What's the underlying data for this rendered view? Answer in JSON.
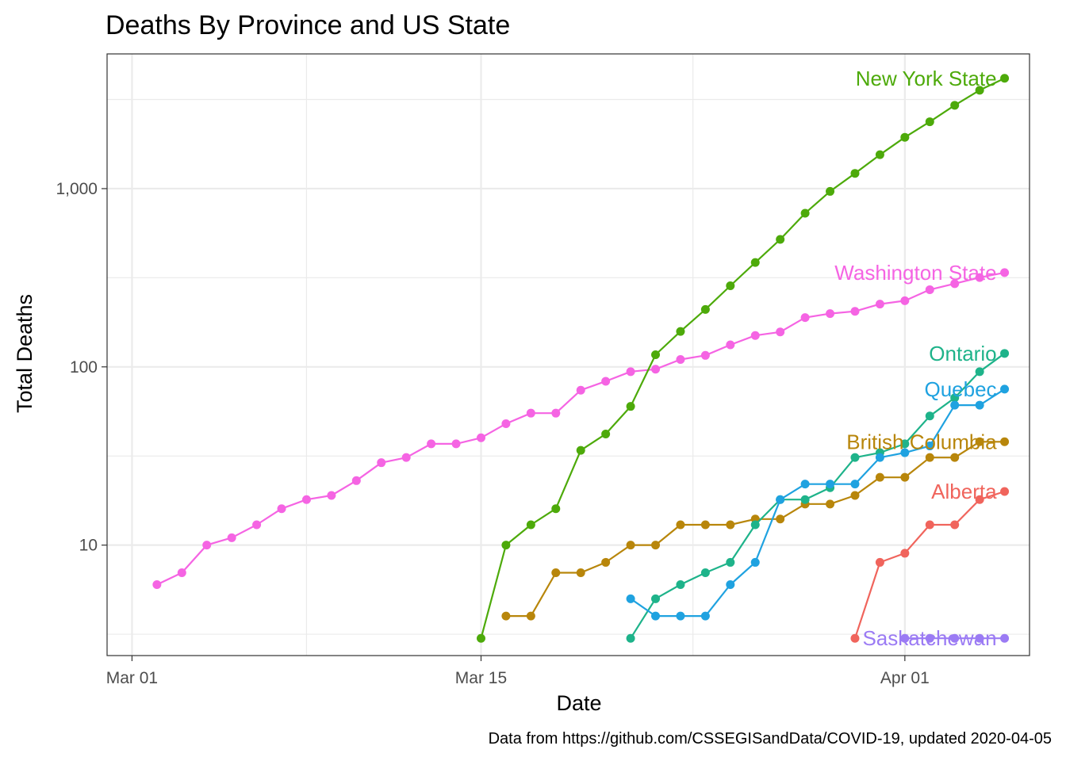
{
  "chart_data": {
    "type": "line",
    "title": "Deaths By Province and US State",
    "xlabel": "Date",
    "ylabel": "Total Deaths",
    "caption": "Data from https://github.com/CSSEGISandData/COVID-19, updated 2020-04-05",
    "y_scale": "log10",
    "ylim": [
      2.4,
      5700
    ],
    "xlim": [
      "2020-02-29",
      "2020-04-06"
    ],
    "x_ticks": [
      {
        "date": "2020-03-01",
        "label": "Mar 01"
      },
      {
        "date": "2020-03-15",
        "label": "Mar 15"
      },
      {
        "date": "2020-04-01",
        "label": "Apr 01"
      }
    ],
    "y_ticks": [
      {
        "value": 10,
        "label": "10"
      },
      {
        "value": 100,
        "label": "100"
      },
      {
        "value": 1000,
        "label": "1,000"
      }
    ],
    "grid": true,
    "legend": "none",
    "series": [
      {
        "name": "Washington State",
        "color": "#F564E3",
        "x": [
          "2020-03-02",
          "2020-03-03",
          "2020-03-04",
          "2020-03-05",
          "2020-03-06",
          "2020-03-07",
          "2020-03-08",
          "2020-03-09",
          "2020-03-10",
          "2020-03-11",
          "2020-03-12",
          "2020-03-13",
          "2020-03-14",
          "2020-03-15",
          "2020-03-16",
          "2020-03-17",
          "2020-03-18",
          "2020-03-19",
          "2020-03-20",
          "2020-03-21",
          "2020-03-22",
          "2020-03-23",
          "2020-03-24",
          "2020-03-25",
          "2020-03-26",
          "2020-03-27",
          "2020-03-28",
          "2020-03-29",
          "2020-03-30",
          "2020-03-31",
          "2020-04-01",
          "2020-04-02",
          "2020-04-03",
          "2020-04-04",
          "2020-04-05"
        ],
        "values": [
          6,
          7,
          10,
          11,
          13,
          16,
          18,
          19,
          23,
          29,
          31,
          37,
          37,
          40,
          48,
          55,
          55,
          74,
          83,
          94,
          97,
          110,
          116,
          133,
          150,
          157,
          189,
          199,
          205,
          225,
          235,
          271,
          293,
          317,
          338
        ]
      },
      {
        "name": "New York State",
        "color": "#4DAA0A",
        "x": [
          "2020-03-15",
          "2020-03-16",
          "2020-03-17",
          "2020-03-18",
          "2020-03-19",
          "2020-03-20",
          "2020-03-21",
          "2020-03-22",
          "2020-03-23",
          "2020-03-24",
          "2020-03-25",
          "2020-03-26",
          "2020-03-27",
          "2020-03-28",
          "2020-03-29",
          "2020-03-30",
          "2020-03-31",
          "2020-04-01",
          "2020-04-02",
          "2020-04-03",
          "2020-04-04",
          "2020-04-05"
        ],
        "values": [
          3,
          10,
          13,
          16,
          34,
          42,
          60,
          117,
          158,
          210,
          285,
          385,
          519,
          728,
          965,
          1218,
          1550,
          1941,
          2373,
          2935,
          3565,
          4159
        ]
      },
      {
        "name": "British Columbia",
        "color": "#B8860B",
        "x": [
          "2020-03-16",
          "2020-03-17",
          "2020-03-18",
          "2020-03-19",
          "2020-03-20",
          "2020-03-21",
          "2020-03-22",
          "2020-03-23",
          "2020-03-24",
          "2020-03-25",
          "2020-03-26",
          "2020-03-27",
          "2020-03-28",
          "2020-03-29",
          "2020-03-30",
          "2020-03-31",
          "2020-04-01",
          "2020-04-02",
          "2020-04-03",
          "2020-04-04",
          "2020-04-05"
        ],
        "values": [
          4,
          4,
          7,
          7,
          8,
          10,
          10,
          13,
          13,
          13,
          14,
          14,
          17,
          17,
          19,
          24,
          24,
          31,
          31,
          38,
          38
        ]
      },
      {
        "name": "Ontario",
        "color": "#1EB38A",
        "x": [
          "2020-03-21",
          "2020-03-22",
          "2020-03-23",
          "2020-03-24",
          "2020-03-25",
          "2020-03-26",
          "2020-03-27",
          "2020-03-28",
          "2020-03-29",
          "2020-03-30",
          "2020-03-31",
          "2020-04-01",
          "2020-04-02",
          "2020-04-03",
          "2020-04-04",
          "2020-04-05"
        ],
        "values": [
          3,
          5,
          6,
          7,
          8,
          13,
          18,
          18,
          21,
          31,
          33,
          37,
          53,
          67,
          94,
          119
        ]
      },
      {
        "name": "Quebec",
        "color": "#1FA2E0",
        "x": [
          "2020-03-21",
          "2020-03-22",
          "2020-03-23",
          "2020-03-24",
          "2020-03-25",
          "2020-03-26",
          "2020-03-27",
          "2020-03-28",
          "2020-03-29",
          "2020-03-30",
          "2020-03-31",
          "2020-04-01",
          "2020-04-02",
          "2020-04-03",
          "2020-04-04",
          "2020-04-05"
        ],
        "values": [
          5,
          4,
          4,
          4,
          6,
          8,
          18,
          22,
          22,
          22,
          31,
          33,
          36,
          61,
          61,
          75
        ]
      },
      {
        "name": "Alberta",
        "color": "#F0645C",
        "x": [
          "2020-03-30",
          "2020-03-31",
          "2020-04-01",
          "2020-04-02",
          "2020-04-03",
          "2020-04-04",
          "2020-04-05"
        ],
        "values": [
          3,
          8,
          9,
          13,
          13,
          18,
          20
        ]
      },
      {
        "name": "Saskatchewan",
        "color": "#9B7BF4",
        "x": [
          "2020-04-01",
          "2020-04-02",
          "2020-04-03",
          "2020-04-04",
          "2020-04-05"
        ],
        "values": [
          3,
          3,
          3,
          3,
          3
        ]
      }
    ]
  }
}
